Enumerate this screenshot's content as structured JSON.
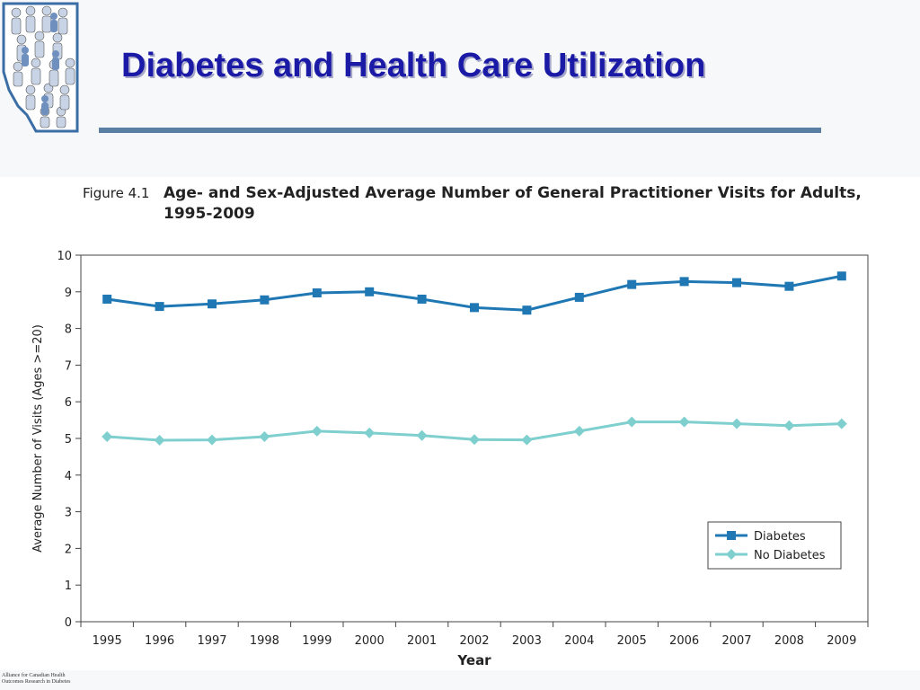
{
  "header": {
    "title": "Diabetes and Health Care Utilization"
  },
  "figure": {
    "label": "Figure 4.1",
    "title": "Age- and Sex-Adjusted Average Number of General Practitioner Visits for Adults, 1995-2009"
  },
  "footer": {
    "org_line1": "Alliance for Canadian Health",
    "org_line2": "Outcomes Research in Diabetes"
  },
  "colors": {
    "title": "#1a1aa6",
    "rule": "#5b7ea3",
    "diabetes": "#1f78b4",
    "no_diabetes": "#7fcfcf"
  },
  "chart_data": {
    "type": "line",
    "xlabel": "Year",
    "ylabel": "Average Number of Visits (Ages >=20)",
    "x": [
      "1995",
      "1996",
      "1997",
      "1998",
      "1999",
      "2000",
      "2001",
      "2002",
      "2003",
      "2004",
      "2005",
      "2006",
      "2007",
      "2008",
      "2009"
    ],
    "ylim": [
      0,
      10
    ],
    "yticks": [
      0,
      1,
      2,
      3,
      4,
      5,
      6,
      7,
      8,
      9,
      10
    ],
    "series": [
      {
        "name": "Diabetes",
        "marker": "square",
        "values": [
          8.8,
          8.6,
          8.67,
          8.78,
          8.97,
          9.0,
          8.8,
          8.57,
          8.5,
          8.85,
          9.2,
          9.28,
          9.25,
          9.15,
          9.43
        ]
      },
      {
        "name": "No Diabetes",
        "marker": "diamond",
        "values": [
          5.05,
          4.95,
          4.96,
          5.05,
          5.2,
          5.15,
          5.08,
          4.97,
          4.96,
          5.2,
          5.45,
          5.45,
          5.4,
          5.35,
          5.4
        ]
      }
    ],
    "legend_position": "bottom-right",
    "grid": false
  }
}
